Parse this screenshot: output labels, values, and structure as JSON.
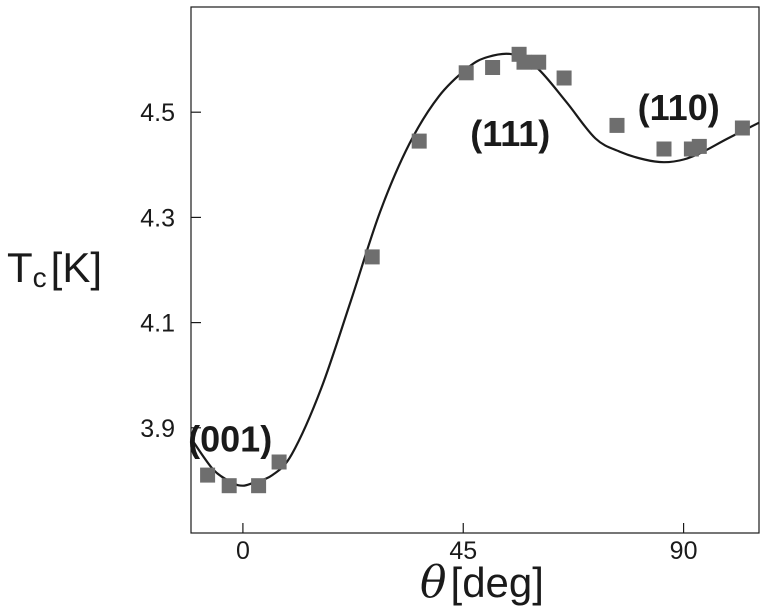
{
  "chart_data": {
    "type": "scatter",
    "xlabel_symbol": "θ",
    "xlabel_unit": "[deg]",
    "ylabel_main": "T",
    "ylabel_sub": "c",
    "ylabel_unit": "[K]",
    "xlim": [
      -5.3,
      52.7
    ],
    "ylim": [
      3.7,
      4.7
    ],
    "x_ticks": [
      {
        "value": 0,
        "label": "0"
      },
      {
        "value": 22.5,
        "label": "45"
      },
      {
        "value": 45,
        "label": "90"
      }
    ],
    "y_ticks": [
      {
        "value": 3.9,
        "label": "3.9"
      },
      {
        "value": 4.1,
        "label": "4.1"
      },
      {
        "value": 4.3,
        "label": "4.3"
      },
      {
        "value": 4.5,
        "label": "4.5"
      }
    ],
    "grid": false,
    "series": [
      {
        "kind": "markers",
        "marker": "square",
        "color": "#6e6e6e",
        "x": [
          -3.6,
          -1.4,
          1.6,
          3.7,
          13.2,
          18.0,
          22.8,
          25.5,
          28.2,
          28.7,
          30.2,
          32.8,
          38.2,
          43.0,
          45.8,
          46.6,
          51.0
        ],
        "y": [
          3.81,
          3.79,
          3.79,
          3.835,
          4.225,
          4.445,
          4.575,
          4.585,
          4.61,
          4.595,
          4.595,
          4.565,
          4.475,
          4.43,
          4.43,
          4.435,
          4.47
        ]
      },
      {
        "kind": "curve",
        "color": "#1a1a1a",
        "x": [
          -5.3,
          -3.0,
          -1.0,
          0.0,
          1.0,
          3.0,
          5.0,
          8.0,
          11.0,
          14.0,
          17.0,
          20.0,
          23.0,
          25.0,
          27.5,
          30.0,
          33.0,
          36.0,
          38.5,
          41.0,
          43.0,
          45.0,
          47.0,
          49.5,
          52.7
        ],
        "y": [
          3.88,
          3.82,
          3.795,
          3.79,
          3.795,
          3.81,
          3.85,
          3.975,
          4.14,
          4.31,
          4.44,
          4.53,
          4.585,
          4.605,
          4.61,
          4.585,
          4.52,
          4.45,
          4.425,
          4.41,
          4.405,
          4.41,
          4.425,
          4.45,
          4.48
        ]
      }
    ],
    "annotations": [
      {
        "text": "(001)",
        "x": -1.3,
        "y": 3.88
      },
      {
        "text": "(111)",
        "x": 27.3,
        "y": 4.46
      },
      {
        "text": "(110)",
        "x": 44.5,
        "y": 4.51
      }
    ]
  }
}
